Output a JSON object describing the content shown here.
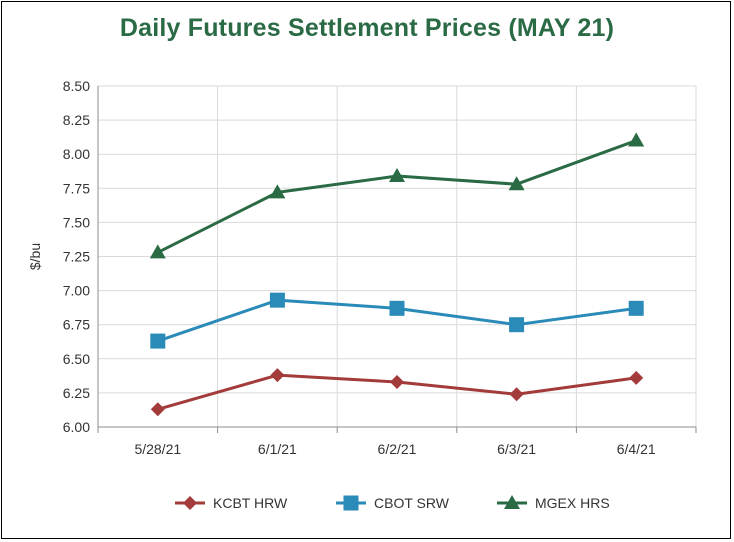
{
  "chart_data": {
    "type": "line",
    "title": "Daily Futures Settlement Prices (MAY 21)",
    "xlabel": "",
    "ylabel": "$/bu",
    "ylim": [
      6.0,
      8.5
    ],
    "yticks": [
      "6.00",
      "6.25",
      "6.50",
      "6.75",
      "7.00",
      "7.25",
      "7.50",
      "7.75",
      "8.00",
      "8.25",
      "8.50"
    ],
    "categories": [
      "5/28/21",
      "6/1/21",
      "6/2/21",
      "6/3/21",
      "6/4/21"
    ],
    "grid": true,
    "legend_position": "bottom",
    "series": [
      {
        "name": "KCBT HRW",
        "color": "#a33b3b",
        "marker": "diamond",
        "values": [
          6.13,
          6.38,
          6.33,
          6.24,
          6.36
        ]
      },
      {
        "name": "CBOT SRW",
        "color": "#2a8ab8",
        "marker": "square",
        "values": [
          6.63,
          6.93,
          6.87,
          6.75,
          6.87
        ]
      },
      {
        "name": "MGEX HRS",
        "color": "#2a6a45",
        "marker": "triangle",
        "values": [
          7.28,
          7.72,
          7.84,
          7.78,
          8.1
        ]
      }
    ]
  }
}
